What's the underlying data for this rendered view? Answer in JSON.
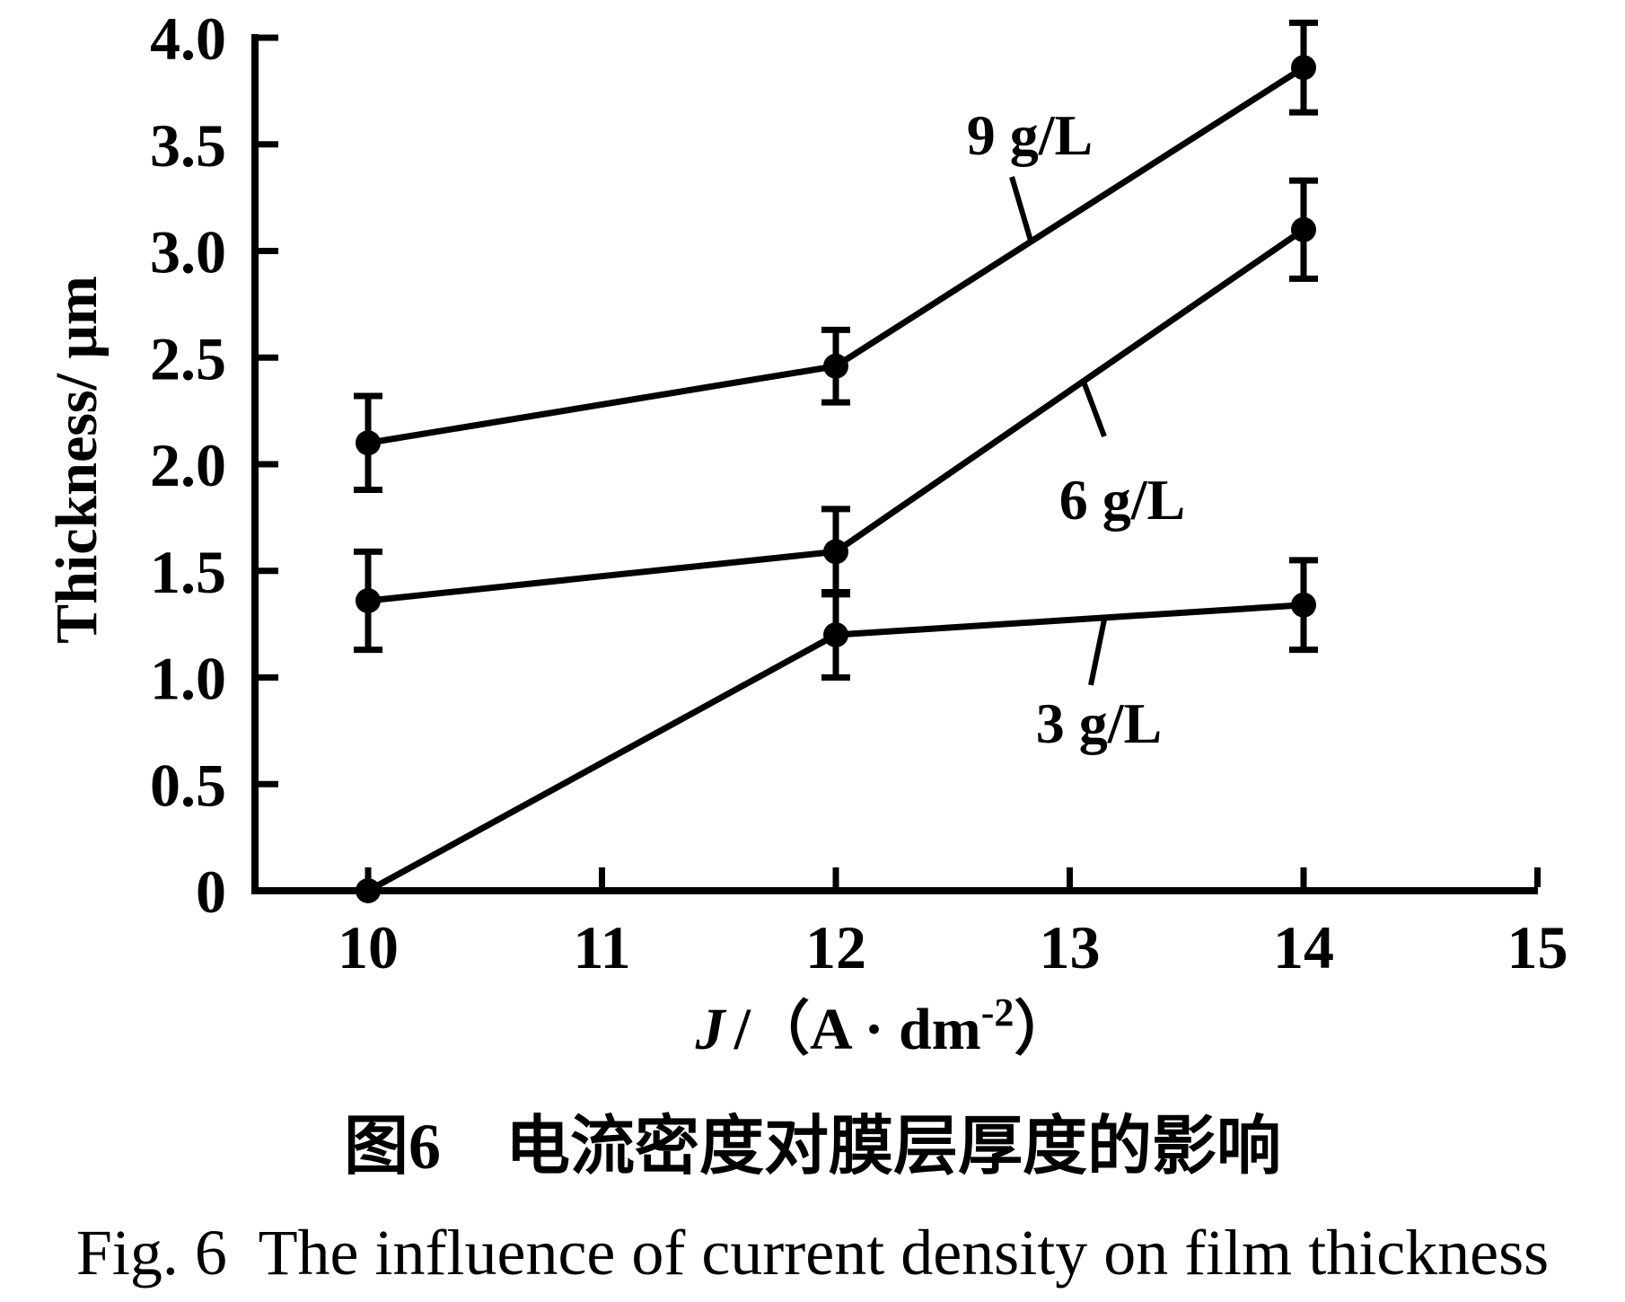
{
  "figure": {
    "caption_zh": "图6　电流密度对膜层厚度的影响",
    "caption_en": "Fig. 6  The influence of current density on film thickness"
  },
  "chart_data": {
    "type": "line",
    "title": "",
    "ylabel": "Thickness/ μm",
    "xlabel_parts": {
      "j": "J",
      "mid": "/（A · dm",
      "sup": "-2",
      "close": "）"
    },
    "xlim": [
      9.5,
      15.2
    ],
    "ylim": [
      0,
      4.0
    ],
    "grid": false,
    "legend_position": "inline-labels-with-leader-lines",
    "marker": "filled-circle",
    "color": "#000000",
    "background": "#ffffff",
    "xticks": [
      {
        "v": 10,
        "label": "10"
      },
      {
        "v": 11,
        "label": "11"
      },
      {
        "v": 12,
        "label": "12"
      },
      {
        "v": 13,
        "label": "13"
      },
      {
        "v": 14,
        "label": "14"
      },
      {
        "v": 15,
        "label": "15"
      }
    ],
    "yticks": [
      {
        "v": 0,
        "label": "0"
      },
      {
        "v": 0.5,
        "label": "0.5"
      },
      {
        "v": 1,
        "label": "1.0"
      },
      {
        "v": 1.5,
        "label": "1.5"
      },
      {
        "v": 2,
        "label": "2.0"
      },
      {
        "v": 2.5,
        "label": "2.5"
      },
      {
        "v": 3,
        "label": "3.0"
      },
      {
        "v": 3.5,
        "label": "3.5"
      },
      {
        "v": 4,
        "label": "4.0"
      }
    ],
    "series": [
      {
        "name": "9 g/L",
        "x": [
          10,
          12,
          14
        ],
        "y": [
          2.1,
          2.46,
          3.86
        ],
        "yerr": [
          0.22,
          0.17,
          0.21
        ]
      },
      {
        "name": "6 g/L",
        "x": [
          10,
          12,
          14
        ],
        "y": [
          1.36,
          1.59,
          3.1
        ],
        "yerr": [
          0.23,
          0.2,
          0.23
        ]
      },
      {
        "name": "3 g/L",
        "x": [
          10,
          12,
          14
        ],
        "y": [
          0.0,
          1.2,
          1.34
        ],
        "yerr": [
          0.0,
          0.2,
          0.21
        ]
      }
    ]
  }
}
